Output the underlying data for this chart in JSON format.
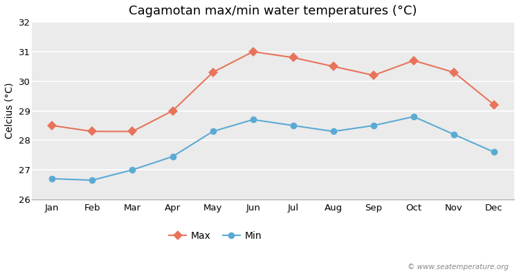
{
  "title": "Cagamotan max/min water temperatures (°C)",
  "ylabel": "Celcius (°C)",
  "months": [
    "Jan",
    "Feb",
    "Mar",
    "Apr",
    "May",
    "Jun",
    "Jul",
    "Aug",
    "Sep",
    "Oct",
    "Nov",
    "Dec"
  ],
  "max_temps": [
    28.5,
    28.3,
    28.3,
    29.0,
    30.3,
    31.0,
    30.8,
    30.5,
    30.2,
    30.7,
    30.3,
    29.2
  ],
  "min_temps": [
    26.7,
    26.65,
    27.0,
    27.45,
    28.3,
    28.7,
    28.5,
    28.3,
    28.5,
    28.8,
    28.2,
    27.6
  ],
  "max_color": "#e8735a",
  "min_color": "#5aaad4",
  "bg_color": "#ffffff",
  "plot_bg_color": "#ebebeb",
  "grid_color": "#ffffff",
  "ylim": [
    26,
    32
  ],
  "yticks": [
    26,
    27,
    28,
    29,
    30,
    31,
    32
  ],
  "legend_labels": [
    "Max",
    "Min"
  ],
  "watermark": "© www.seatemperature.org",
  "title_fontsize": 13,
  "axis_label_fontsize": 10,
  "tick_fontsize": 9.5,
  "legend_fontsize": 10
}
